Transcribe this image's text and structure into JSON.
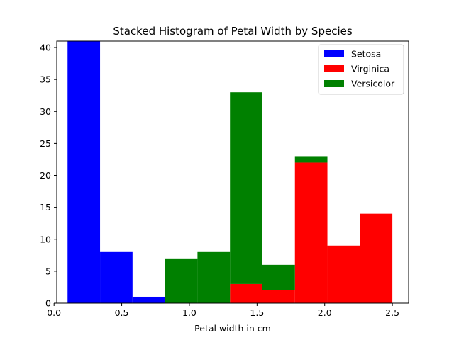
{
  "chart_data": {
    "type": "bar",
    "title": "Stacked Histogram of Petal Width by Species",
    "xlabel": "Petal width in cm",
    "ylabel": "",
    "xlim": [
      0.02,
      2.62
    ],
    "ylim": [
      0,
      41
    ],
    "bin_edges": [
      0.1,
      0.34,
      0.58,
      0.82,
      1.06,
      1.3,
      1.54,
      1.78,
      2.02,
      2.26,
      2.5
    ],
    "stacked": true,
    "series": [
      {
        "name": "Setosa",
        "color": "#0000ff",
        "values": [
          41,
          8,
          1,
          0,
          0,
          0,
          0,
          0,
          0,
          0
        ]
      },
      {
        "name": "Virginica",
        "color": "#ff0000",
        "values": [
          0,
          0,
          0,
          0,
          0,
          3,
          2,
          22,
          9,
          14
        ]
      },
      {
        "name": "Versicolor",
        "color": "#008000",
        "values": [
          0,
          0,
          0,
          7,
          8,
          30,
          4,
          1,
          0,
          0
        ]
      }
    ],
    "xticks": [
      0.0,
      0.5,
      1.0,
      1.5,
      2.0,
      2.5
    ],
    "xtick_labels": [
      "0.0",
      "0.5",
      "1.0",
      "1.5",
      "2.0",
      "2.5"
    ],
    "yticks": [
      0,
      5,
      10,
      15,
      20,
      25,
      30,
      35,
      40
    ],
    "ytick_labels": [
      "0",
      "5",
      "10",
      "15",
      "20",
      "25",
      "30",
      "35",
      "40"
    ],
    "legend_position": "top-right",
    "grid": false
  }
}
